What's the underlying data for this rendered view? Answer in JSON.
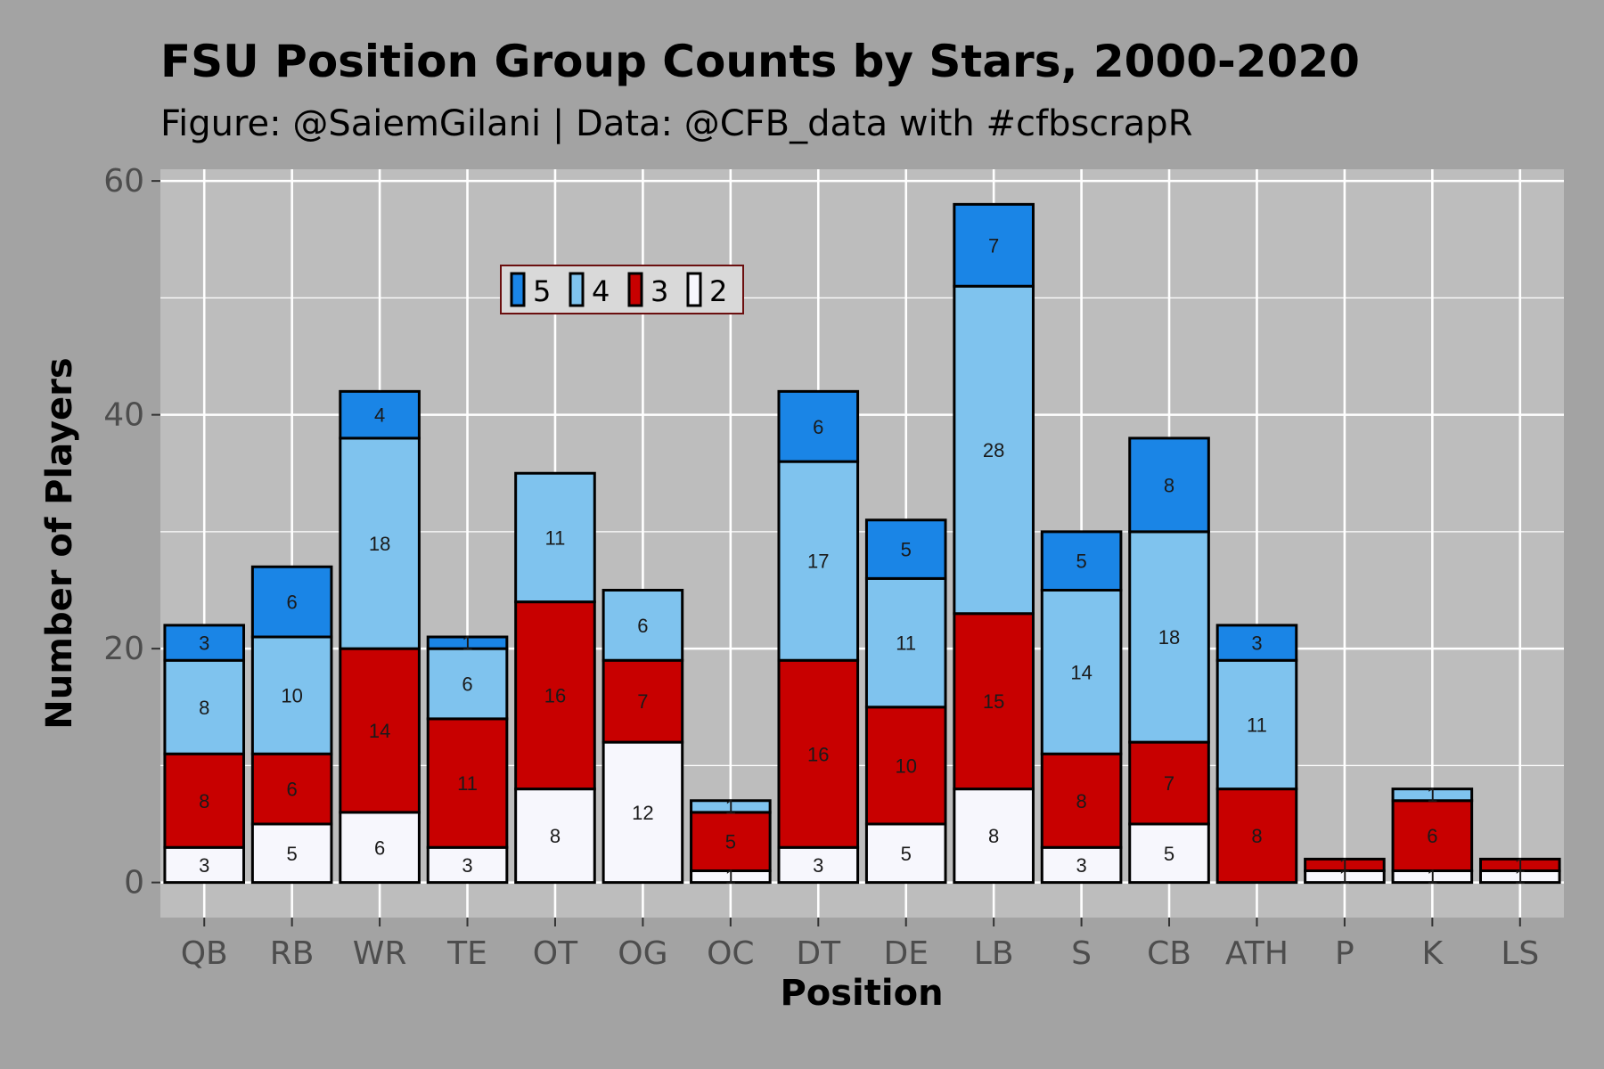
{
  "chart_data": {
    "type": "bar",
    "stacked": true,
    "title": "FSU Position Group Counts by Stars, 2000-2020",
    "subtitle": "Figure: @SaiemGilani | Data: @CFB_data with #cfbscrapR",
    "xlabel": "Position",
    "ylabel": "Number of Players",
    "ylim": [
      -3,
      61
    ],
    "yticks": [
      0,
      20,
      40,
      60
    ],
    "grid": true,
    "legend_placement": "top-center, horizontal, inside plot",
    "categories": [
      "QB",
      "RB",
      "WR",
      "TE",
      "OT",
      "OG",
      "OC",
      "DT",
      "DE",
      "LB",
      "S",
      "CB",
      "ATH",
      "P",
      "K",
      "LS"
    ],
    "series": [
      {
        "name": "2",
        "color": "#f7f7fd",
        "values": [
          3,
          5,
          6,
          3,
          8,
          12,
          1,
          3,
          5,
          8,
          3,
          5,
          0,
          1,
          1,
          1
        ]
      },
      {
        "name": "3",
        "color": "#c80000",
        "values": [
          8,
          6,
          14,
          11,
          16,
          7,
          5,
          16,
          10,
          15,
          8,
          7,
          8,
          1,
          6,
          1
        ]
      },
      {
        "name": "4",
        "color": "#7fc3ee",
        "values": [
          8,
          10,
          18,
          6,
          11,
          6,
          1,
          17,
          11,
          28,
          14,
          18,
          11,
          0,
          1,
          0
        ]
      },
      {
        "name": "5",
        "color": "#1a85e6",
        "values": [
          3,
          6,
          4,
          1,
          0,
          0,
          0,
          6,
          5,
          7,
          5,
          8,
          3,
          0,
          0,
          0
        ]
      }
    ],
    "legend_order": [
      "5",
      "4",
      "3",
      "2"
    ]
  },
  "colors": {
    "figure_background": "#a3a3a3",
    "panel_background": "#bdbdbd",
    "gridline": "#ffffff",
    "bar_outline": "#000000",
    "legend_border": "#6b0f0f"
  }
}
